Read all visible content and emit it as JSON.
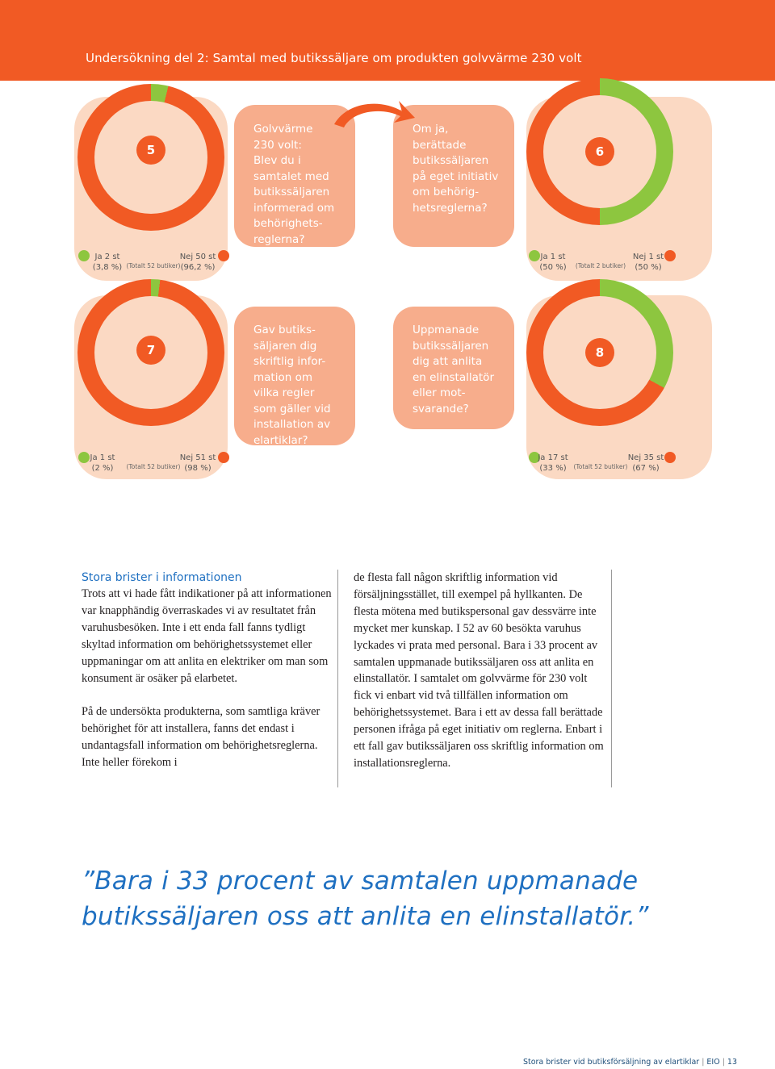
{
  "header": {
    "title": "Undersökning del 2: Samtal med butikssäljare om produkten golvvärme 230 volt"
  },
  "colors": {
    "orange": "#f15a24",
    "green": "#8dc63f",
    "blue": "#1f70c1",
    "pill": "#fbd9c3",
    "qbox": "#f7ad8c"
  },
  "charts": [
    {
      "number": "5",
      "question": "Golvvärme\n230 volt:\nBlev du i\nsamtalet med\nbutikssäljaren\ninformerad om\nbehörighets-\nreglerna?",
      "ja": {
        "count": "Ja 2 st",
        "pct": "(3,8 %)"
      },
      "total": "(Totalt 52 butiker)",
      "nej": {
        "count": "Nej 50 st",
        "pct": "(96,2 %)"
      },
      "ja_share": 3.8
    },
    {
      "number": "6",
      "question": "Om ja,\nberättade\nbutikssäljaren\npå eget initiativ\nom behörig-\nhetsreglerna?",
      "ja": {
        "count": "Ja 1 st",
        "pct": "(50 %)"
      },
      "total": "(Totalt 2 butiker)",
      "nej": {
        "count": "Nej 1 st",
        "pct": "(50 %)"
      },
      "ja_share": 50
    },
    {
      "number": "7",
      "question": "Gav butiks-\nsäljaren dig\nskriftlig infor-\nmation om\nvilka regler\nsom gäller vid\ninstallation av\nelartiklar?",
      "ja": {
        "count": "Ja 1 st",
        "pct": "(2 %)"
      },
      "total": "(Totalt 52 butiker)",
      "nej": {
        "count": "Nej 51 st",
        "pct": "(98 %)"
      },
      "ja_share": 2
    },
    {
      "number": "8",
      "question": "Uppmanade\nbutikssäljaren\ndig att anlita\nen elinstallatör\neller mot-\nsvarande?",
      "ja": {
        "count": "Ja 17 st",
        "pct": "(33 %)"
      },
      "total": "(Totalt 52 butiker)",
      "nej": {
        "count": "Nej 35 st",
        "pct": "(67 %)"
      },
      "ja_share": 33
    }
  ],
  "article": {
    "subhead": "Stora brister i informationen",
    "col1_p1": "Trots att vi hade fått indikationer på att informationen var knapphändig överraskades vi av resultatet från varuhusbesöken. Inte i ett enda fall fanns tydligt skyltad information om behörighetssystemet eller uppmaningar om att anlita en elektriker om man som konsument är osäker på elarbetet.",
    "col1_p2": "På de undersökta produkterna, som samtliga kräver behörighet för att installera, fanns det endast i undantagsfall information om behörighetsreglerna. Inte heller förekom i",
    "col2_p1": "de flesta fall någon skriftlig information vid försäljningsstället, till exempel på hyllkanten. De flesta mötena med butikspersonal gav dessvärre inte mycket mer kunskap. I 52 av 60 besökta varuhus lyckades vi prata med personal. Bara i 33 procent av samtalen uppmanade butikssäljaren oss att anlita en elinstallatör. I samtalet om golvvärme för 230 volt fick vi enbart vid två tillfällen information om behörighetssystemet. Bara i ett av dessa fall berättade personen ifråga på eget initiativ om reglerna. Enbart i ett fall gav butikssäljaren oss skriftlig information om installationsreglerna."
  },
  "quote": "”Bara i 33 procent av samtalen uppmanade butikssäljaren oss att anlita en elinstallatör.”",
  "footer": {
    "text": "Stora brister vid butiksförsäljning av elartiklar",
    "org": "EIO",
    "page": "13"
  }
}
